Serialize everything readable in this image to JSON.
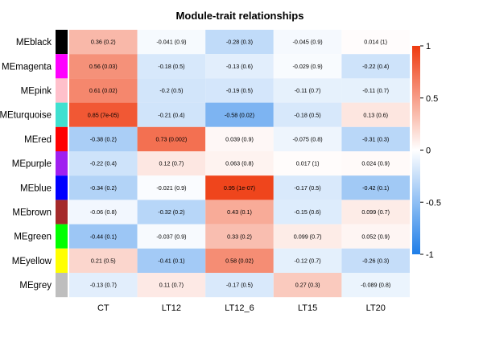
{
  "chart_data": {
    "type": "heatmap",
    "title": "Module-trait relationships",
    "columns": [
      "CT",
      "LT12",
      "LT12_6",
      "LT15",
      "LT20"
    ],
    "rows": [
      {
        "label": "MEblack",
        "swatch": "#000000",
        "values": [
          0.36,
          -0.041,
          -0.28,
          -0.045,
          0.014
        ],
        "texts": [
          "0.36 (0.2)",
          "-0.041 (0.9)",
          "-0.28 (0.3)",
          "-0.045 (0.9)",
          "0.014 (1)"
        ]
      },
      {
        "label": "MEmagenta",
        "swatch": "#ff00ff",
        "values": [
          0.56,
          -0.18,
          -0.13,
          -0.029,
          -0.22
        ],
        "texts": [
          "0.56 (0.03)",
          "-0.18 (0.5)",
          "-0.13 (0.6)",
          "-0.029 (0.9)",
          "-0.22 (0.4)"
        ]
      },
      {
        "label": "MEpink",
        "swatch": "#ffc0cb",
        "values": [
          0.61,
          -0.2,
          -0.19,
          -0.11,
          -0.11
        ],
        "texts": [
          "0.61 (0.02)",
          "-0.2 (0.5)",
          "-0.19 (0.5)",
          "-0.11 (0.7)",
          "-0.11 (0.7)"
        ]
      },
      {
        "label": "MEturquoise",
        "swatch": "#40e0d0",
        "values": [
          0.85,
          -0.21,
          -0.58,
          -0.18,
          0.13
        ],
        "texts": [
          "0.85 (7e-05)",
          "-0.21 (0.4)",
          "-0.58 (0.02)",
          "-0.18 (0.5)",
          "0.13 (0.6)"
        ]
      },
      {
        "label": "MEred",
        "swatch": "#ff0000",
        "values": [
          -0.38,
          0.73,
          0.039,
          -0.075,
          -0.31
        ],
        "texts": [
          "-0.38 (0.2)",
          "0.73 (0.002)",
          "0.039 (0.9)",
          "-0.075 (0.8)",
          "-0.31 (0.3)"
        ]
      },
      {
        "label": "MEpurple",
        "swatch": "#a020f0",
        "values": [
          -0.22,
          0.12,
          0.063,
          0.017,
          0.024
        ],
        "texts": [
          "-0.22 (0.4)",
          "0.12 (0.7)",
          "0.063 (0.8)",
          "0.017 (1)",
          "0.024 (0.9)"
        ]
      },
      {
        "label": "MEblue",
        "swatch": "#0000ff",
        "values": [
          -0.34,
          -0.021,
          0.95,
          -0.17,
          -0.42
        ],
        "texts": [
          "-0.34 (0.2)",
          "-0.021 (0.9)",
          "0.95 (1e-07)",
          "-0.17 (0.5)",
          "-0.42 (0.1)"
        ]
      },
      {
        "label": "MEbrown",
        "swatch": "#a52a2a",
        "values": [
          -0.06,
          -0.32,
          0.43,
          -0.15,
          0.099
        ],
        "texts": [
          "-0.06 (0.8)",
          "-0.32 (0.2)",
          "0.43 (0.1)",
          "-0.15 (0.6)",
          "0.099 (0.7)"
        ]
      },
      {
        "label": "MEgreen",
        "swatch": "#00ff00",
        "values": [
          -0.44,
          -0.037,
          0.33,
          0.099,
          0.052
        ],
        "texts": [
          "-0.44 (0.1)",
          "-0.037 (0.9)",
          "0.33 (0.2)",
          "0.099 (0.7)",
          "0.052 (0.9)"
        ]
      },
      {
        "label": "MEyellow",
        "swatch": "#ffff00",
        "values": [
          0.21,
          -0.41,
          0.58,
          -0.12,
          -0.26
        ],
        "texts": [
          "0.21 (0.5)",
          "-0.41 (0.1)",
          "0.58 (0.02)",
          "-0.12 (0.7)",
          "-0.26 (0.3)"
        ]
      },
      {
        "label": "MEgrey",
        "swatch": "#bebebe",
        "values": [
          -0.13,
          0.11,
          -0.17,
          0.27,
          -0.089
        ],
        "texts": [
          "-0.13 (0.7)",
          "0.11 (0.7)",
          "-0.17 (0.5)",
          "0.27 (0.3)",
          "-0.089 (0.8)"
        ]
      }
    ],
    "colorbar": {
      "range": [
        -1,
        1
      ],
      "ticks": [
        1,
        0.5,
        0,
        -0.5,
        -1
      ],
      "tick_labels": [
        "1",
        "0.5",
        "0",
        "-0.5",
        "-1"
      ],
      "low_color": "#1e7ee8",
      "mid_color": "#ffffff",
      "high_color": "#ee3b10"
    }
  }
}
